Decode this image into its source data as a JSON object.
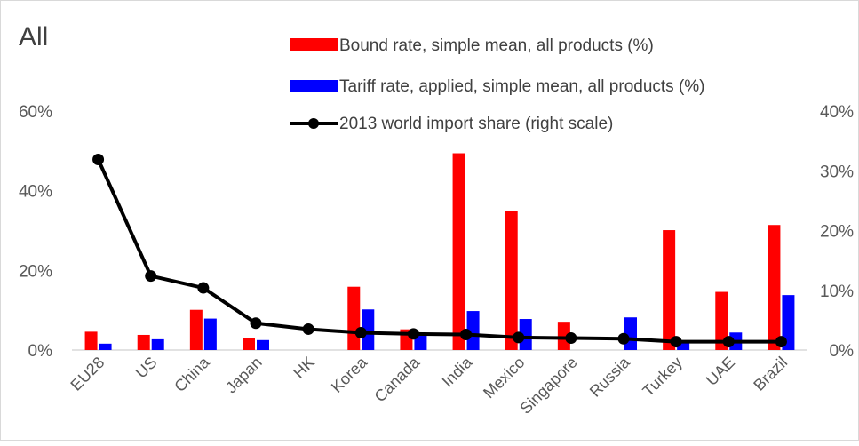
{
  "chart_data": {
    "type": "bar",
    "title": "All",
    "categories": [
      "EU28",
      "US",
      "China",
      "Japan",
      "HK",
      "Korea",
      "Canada",
      "India",
      "Mexico",
      "Singapore",
      "Russia",
      "Turkey",
      "UAE",
      "Brazil"
    ],
    "series": [
      {
        "name": "Bound rate, simple mean, all products (%)",
        "kind": "bar",
        "axis": "left",
        "color": "#ff0000",
        "values": [
          4.6,
          3.8,
          10.1,
          3.1,
          0,
          15.9,
          5.2,
          49.4,
          35.0,
          7.1,
          0,
          30.1,
          14.6,
          31.4
        ]
      },
      {
        "name": "Tariff rate, applied, simple mean, all products (%)",
        "kind": "bar",
        "axis": "left",
        "color": "#0000ff",
        "values": [
          1.6,
          2.7,
          7.9,
          2.5,
          0,
          10.2,
          4.1,
          9.8,
          7.8,
          0,
          8.2,
          2.4,
          4.4,
          13.8
        ]
      },
      {
        "name": "2013 world import share (right scale)",
        "kind": "line",
        "axis": "right",
        "color": "#000000",
        "values": [
          31.9,
          12.4,
          10.4,
          4.5,
          3.5,
          2.9,
          2.7,
          2.6,
          2.1,
          2.0,
          1.9,
          1.4,
          1.4,
          1.4
        ]
      }
    ],
    "y_left": {
      "ticks": [
        "0%",
        "20%",
        "40%",
        "60%"
      ],
      "range": [
        0,
        60
      ]
    },
    "y_right": {
      "ticks": [
        "0%",
        "10%",
        "20%",
        "30%",
        "40%"
      ],
      "range": [
        0,
        40
      ]
    },
    "grid": false,
    "legend_position": "top-right"
  }
}
